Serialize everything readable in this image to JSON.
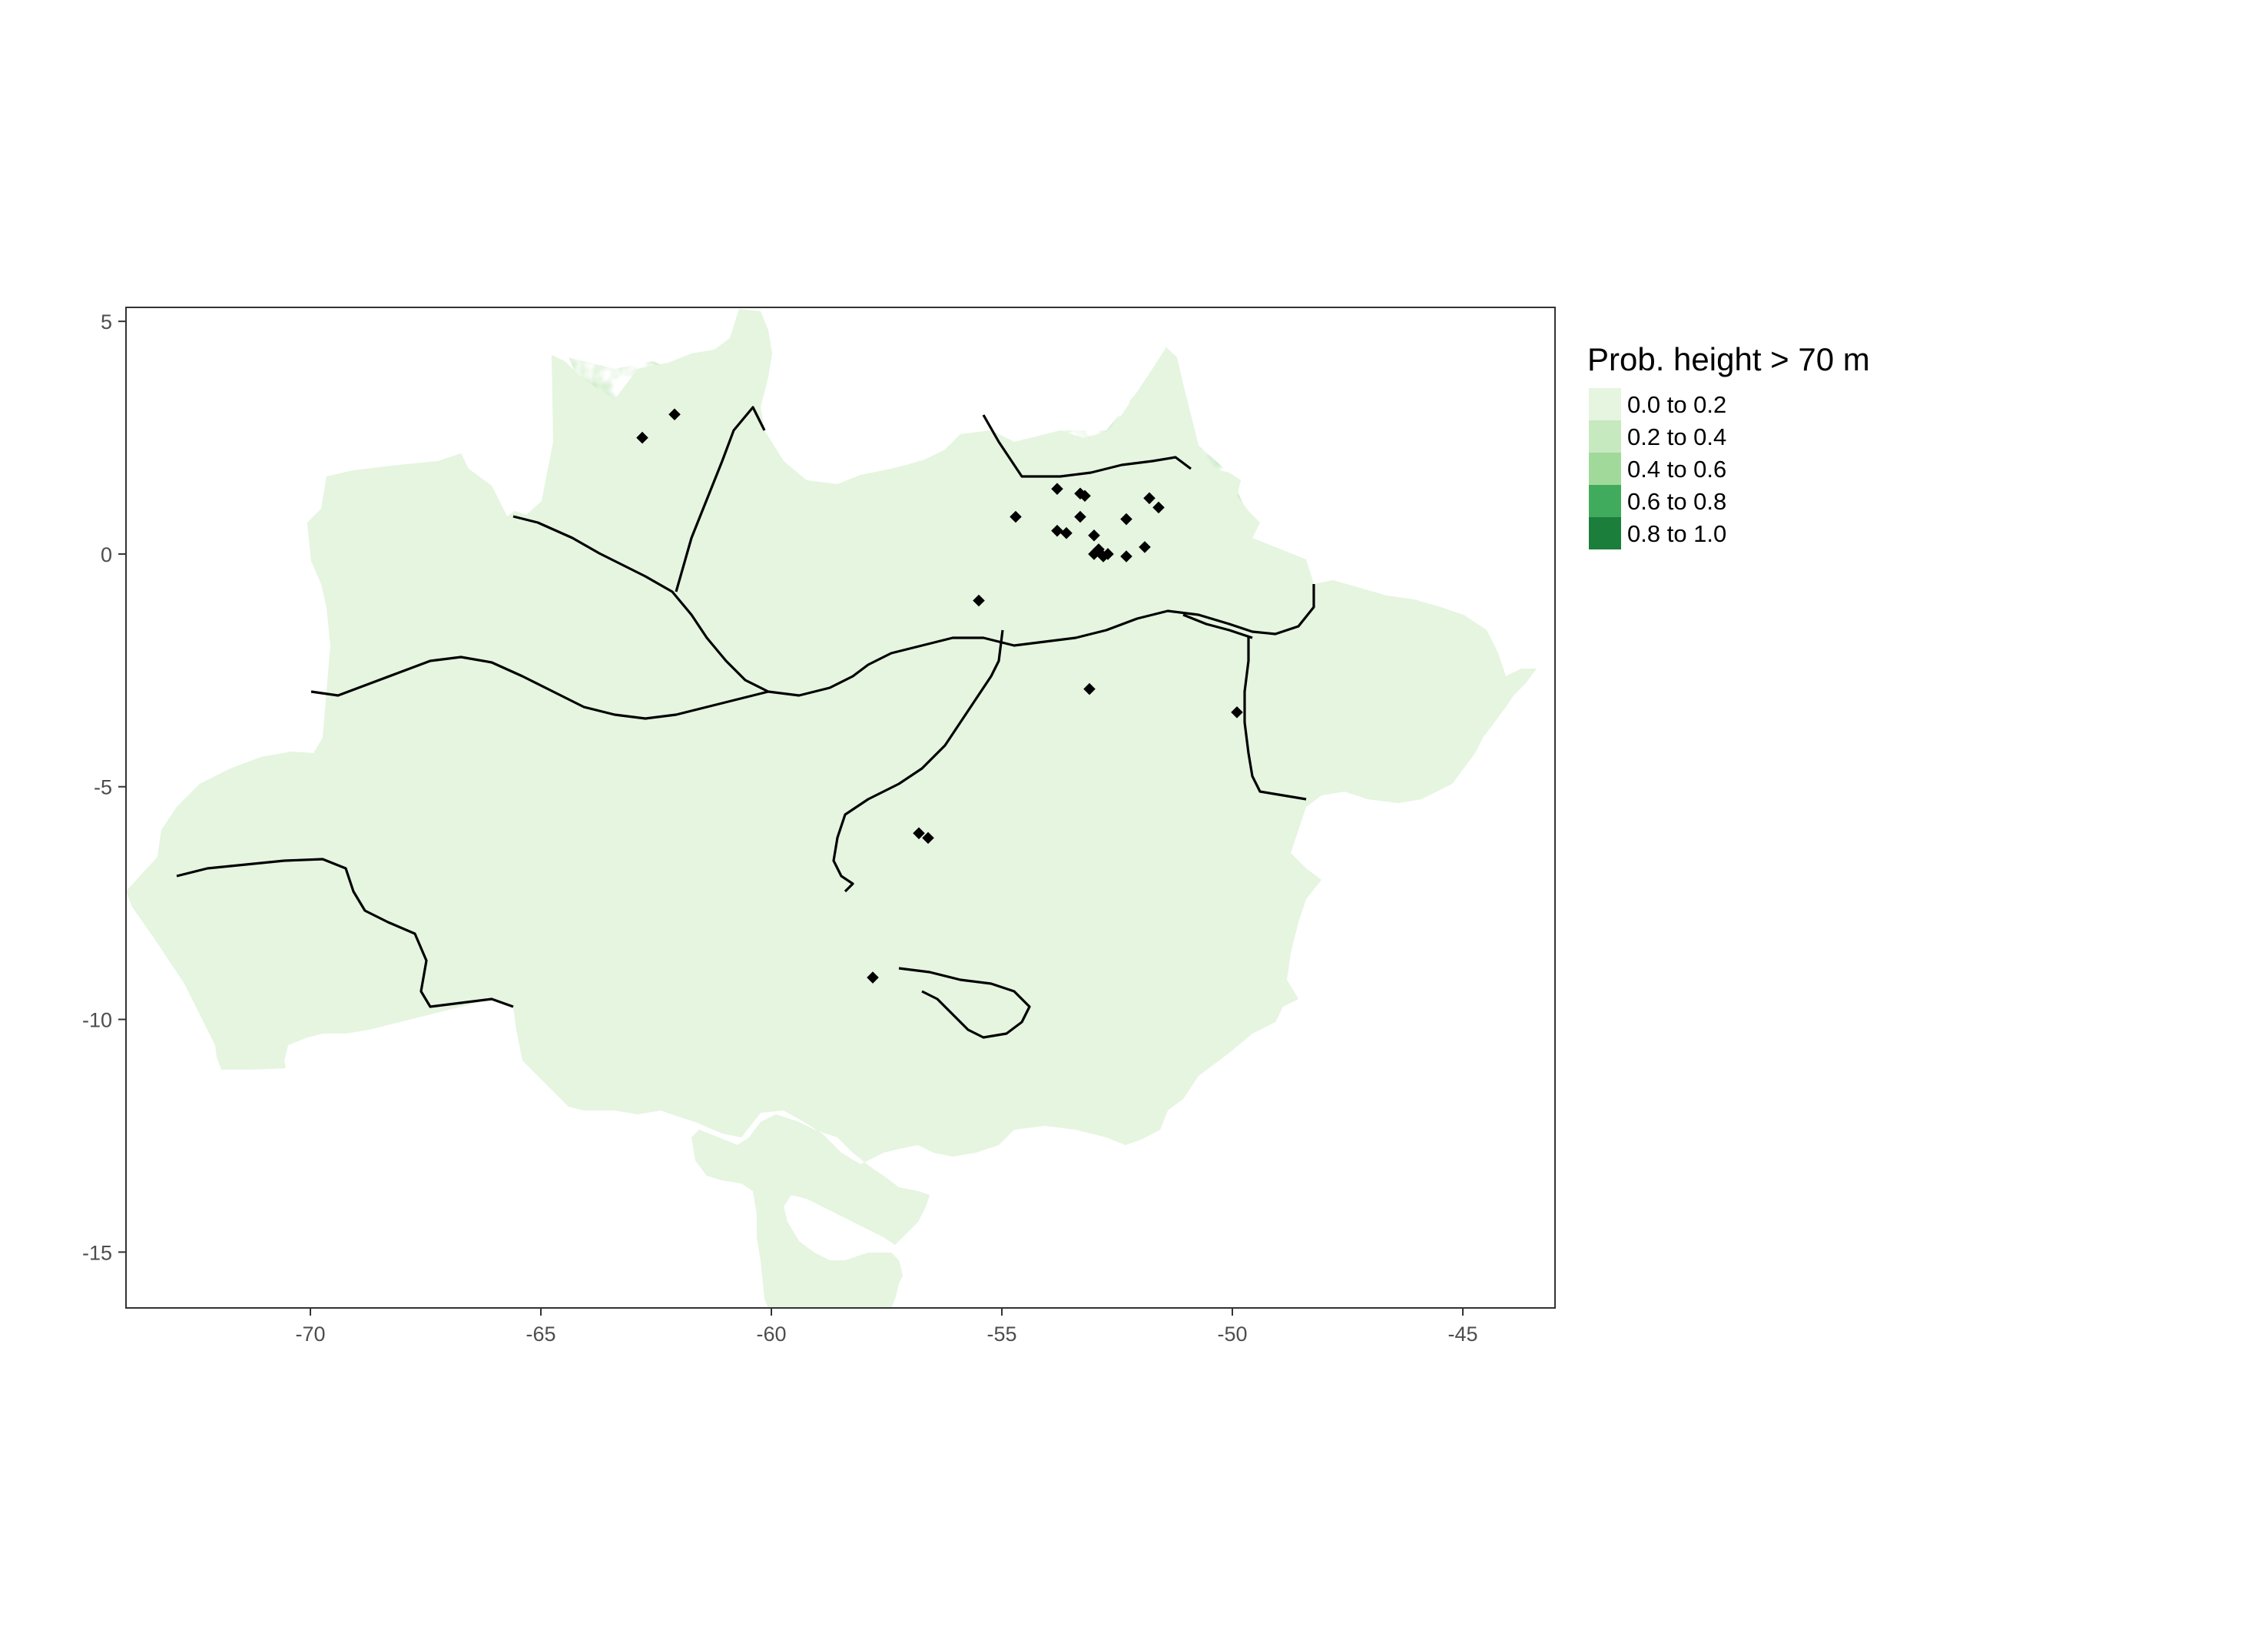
{
  "chart_data": {
    "type": "heatmap",
    "legend": {
      "title": "Prob. height > 70 m",
      "placement": "right",
      "entries": [
        {
          "label": "0.0 to 0.2",
          "color": "#e5f5e0"
        },
        {
          "label": "0.2 to 0.4",
          "color": "#c7e9c0"
        },
        {
          "label": "0.4 to 0.6",
          "color": "#a1d99b"
        },
        {
          "label": "0.6 to 0.8",
          "color": "#41ab5d"
        },
        {
          "label": "0.8 to 1.0",
          "color": "#1b7f3b"
        }
      ]
    },
    "xlim": [
      -74,
      -43
    ],
    "ylim": [
      -16.2,
      5.3
    ],
    "x_ticks": [
      {
        "value": -70,
        "label": "-70"
      },
      {
        "value": -65,
        "label": "-65"
      },
      {
        "value": -60,
        "label": "-60"
      },
      {
        "value": -55,
        "label": "-55"
      },
      {
        "value": -50,
        "label": "-50"
      },
      {
        "value": -45,
        "label": "-45"
      }
    ],
    "y_ticks": [
      {
        "value": 5,
        "label": "5"
      },
      {
        "value": 0,
        "label": "0"
      },
      {
        "value": -5,
        "label": "-5"
      },
      {
        "value": -10,
        "label": "-10"
      },
      {
        "value": -15,
        "label": "-15"
      }
    ],
    "grid": false,
    "points": [
      {
        "x": -62.1,
        "y": 3.0
      },
      {
        "x": -62.8,
        "y": 2.5
      },
      {
        "x": -53.8,
        "y": 1.4
      },
      {
        "x": -53.3,
        "y": 1.3
      },
      {
        "x": -53.2,
        "y": 1.25
      },
      {
        "x": -51.8,
        "y": 1.2
      },
      {
        "x": -51.6,
        "y": 1.0
      },
      {
        "x": -54.7,
        "y": 0.8
      },
      {
        "x": -53.3,
        "y": 0.8
      },
      {
        "x": -52.3,
        "y": 0.75
      },
      {
        "x": -53.8,
        "y": 0.5
      },
      {
        "x": -53.6,
        "y": 0.45
      },
      {
        "x": -53.0,
        "y": 0.4
      },
      {
        "x": -52.9,
        "y": 0.1
      },
      {
        "x": -53.0,
        "y": 0.0
      },
      {
        "x": -52.8,
        "y": -0.05
      },
      {
        "x": -52.7,
        "y": 0.0
      },
      {
        "x": -52.3,
        "y": -0.05
      },
      {
        "x": -51.9,
        "y": 0.15
      },
      {
        "x": -55.5,
        "y": -1.0
      },
      {
        "x": -53.1,
        "y": -2.9
      },
      {
        "x": -49.9,
        "y": -3.4
      },
      {
        "x": -56.8,
        "y": -6.0
      },
      {
        "x": -56.6,
        "y": -6.1
      },
      {
        "x": -57.8,
        "y": -9.1
      }
    ]
  }
}
